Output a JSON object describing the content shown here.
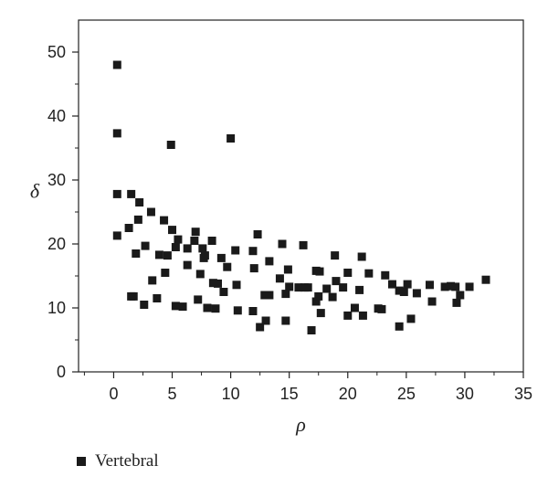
{
  "chart_data": {
    "type": "scatter",
    "xlabel": "ρ",
    "ylabel": "δ",
    "xlim": [
      -3,
      35
    ],
    "ylim": [
      0,
      55
    ],
    "xticks": [
      0,
      5,
      10,
      15,
      20,
      25,
      30,
      35
    ],
    "yticks": [
      0,
      10,
      20,
      30,
      40,
      50
    ],
    "grid": false,
    "legend_position": "bottom-left",
    "series": [
      {
        "name": "Vertebral",
        "color": "#1a1a1a",
        "marker": "square",
        "points": [
          [
            0.3,
            48.0
          ],
          [
            0.3,
            37.3
          ],
          [
            0.3,
            27.8
          ],
          [
            0.3,
            21.3
          ],
          [
            1.3,
            22.5
          ],
          [
            1.5,
            11.8
          ],
          [
            1.5,
            27.8
          ],
          [
            1.7,
            11.8
          ],
          [
            1.9,
            18.5
          ],
          [
            2.2,
            26.5
          ],
          [
            2.1,
            23.8
          ],
          [
            2.6,
            10.5
          ],
          [
            2.7,
            19.7
          ],
          [
            3.2,
            25.0
          ],
          [
            3.3,
            14.3
          ],
          [
            3.7,
            11.5
          ],
          [
            3.9,
            18.3
          ],
          [
            4.3,
            23.7
          ],
          [
            4.4,
            15.5
          ],
          [
            4.6,
            18.2
          ],
          [
            4.9,
            35.5
          ],
          [
            5.0,
            22.2
          ],
          [
            5.3,
            10.3
          ],
          [
            5.3,
            19.5
          ],
          [
            5.5,
            20.7
          ],
          [
            5.9,
            10.2
          ],
          [
            6.3,
            16.7
          ],
          [
            6.3,
            19.3
          ],
          [
            6.9,
            20.5
          ],
          [
            7.0,
            21.9
          ],
          [
            7.2,
            11.3
          ],
          [
            7.4,
            15.3
          ],
          [
            7.6,
            19.3
          ],
          [
            7.7,
            17.8
          ],
          [
            7.8,
            18.2
          ],
          [
            8.0,
            10.0
          ],
          [
            8.4,
            20.5
          ],
          [
            8.5,
            13.9
          ],
          [
            8.7,
            9.9
          ],
          [
            8.9,
            13.8
          ],
          [
            9.2,
            17.8
          ],
          [
            9.4,
            12.5
          ],
          [
            9.7,
            16.4
          ],
          [
            10.0,
            36.5
          ],
          [
            10.4,
            19.0
          ],
          [
            10.5,
            13.6
          ],
          [
            10.6,
            9.6
          ],
          [
            11.9,
            18.9
          ],
          [
            11.9,
            9.5
          ],
          [
            12.0,
            16.2
          ],
          [
            12.3,
            21.5
          ],
          [
            12.5,
            7.0
          ],
          [
            12.9,
            12.0
          ],
          [
            13.0,
            8.0
          ],
          [
            13.3,
            12.0
          ],
          [
            13.3,
            17.3
          ],
          [
            14.2,
            14.6
          ],
          [
            14.4,
            20.0
          ],
          [
            14.7,
            12.2
          ],
          [
            14.7,
            8.0
          ],
          [
            14.9,
            16.0
          ],
          [
            15.0,
            13.3
          ],
          [
            15.8,
            13.2
          ],
          [
            16.2,
            19.8
          ],
          [
            16.3,
            13.2
          ],
          [
            16.6,
            13.2
          ],
          [
            16.9,
            6.5
          ],
          [
            17.3,
            15.8
          ],
          [
            17.3,
            11.0
          ],
          [
            17.5,
            11.8
          ],
          [
            17.6,
            15.7
          ],
          [
            17.7,
            9.2
          ],
          [
            18.2,
            13.0
          ],
          [
            18.7,
            11.7
          ],
          [
            18.9,
            18.2
          ],
          [
            19.0,
            14.2
          ],
          [
            19.6,
            13.2
          ],
          [
            20.0,
            15.5
          ],
          [
            20.0,
            8.8
          ],
          [
            20.6,
            10.0
          ],
          [
            21.0,
            12.8
          ],
          [
            21.2,
            18.0
          ],
          [
            21.3,
            8.8
          ],
          [
            21.8,
            15.4
          ],
          [
            22.6,
            9.9
          ],
          [
            22.9,
            9.8
          ],
          [
            23.2,
            15.1
          ],
          [
            23.8,
            13.7
          ],
          [
            24.4,
            12.7
          ],
          [
            24.4,
            7.1
          ],
          [
            24.8,
            12.5
          ],
          [
            25.1,
            13.7
          ],
          [
            25.4,
            8.3
          ],
          [
            25.9,
            12.3
          ],
          [
            27.0,
            13.6
          ],
          [
            27.2,
            11.0
          ],
          [
            28.3,
            13.3
          ],
          [
            28.8,
            13.4
          ],
          [
            29.2,
            13.3
          ],
          [
            29.3,
            10.8
          ],
          [
            29.6,
            12.0
          ],
          [
            30.4,
            13.3
          ],
          [
            31.8,
            14.4
          ]
        ]
      }
    ]
  }
}
